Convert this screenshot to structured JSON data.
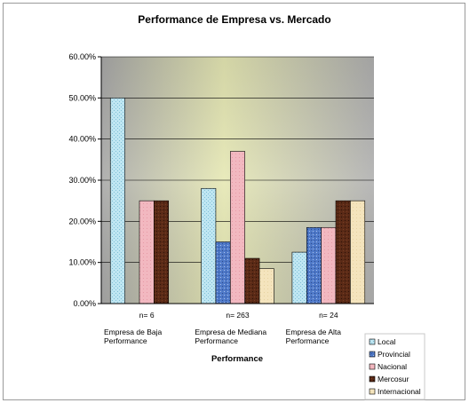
{
  "chart_data": {
    "type": "bar",
    "title": "Performance de Empresa vs. Mercado",
    "xlabel": "Performance",
    "ylabel": "",
    "ylim": [
      0,
      0.6
    ],
    "yticks": [
      "0.00%",
      "10.00%",
      "20.00%",
      "30.00%",
      "40.00%",
      "50.00%",
      "60.00%"
    ],
    "categories": [
      [
        "Empresa de Baja",
        "Performance"
      ],
      [
        "Empresa de Mediana",
        "Performance"
      ],
      [
        "Empresa de Alta",
        "Performance"
      ]
    ],
    "sample_sizes": [
      "n= 6",
      "n= 263",
      "n= 24"
    ],
    "series": [
      {
        "name": "Local",
        "values": [
          0.5,
          0.28,
          0.125
        ]
      },
      {
        "name": "Provincial",
        "values": [
          0,
          0.15,
          0.185
        ]
      },
      {
        "name": "Nacional",
        "values": [
          0.25,
          0.37,
          0.185
        ]
      },
      {
        "name": "Mercosur",
        "values": [
          0.25,
          0.11,
          0.25
        ]
      },
      {
        "name": "Internacional",
        "values": [
          0,
          0.085,
          0.25
        ]
      }
    ],
    "colors": {
      "Local": "#bfe6f2",
      "Provincial": "#4f79c8",
      "Nacional": "#f2b8c0",
      "Mercosur": "#5a2a16",
      "Internacional": "#f4e4bd"
    },
    "legend_position": "bottom-right",
    "grid": true
  }
}
